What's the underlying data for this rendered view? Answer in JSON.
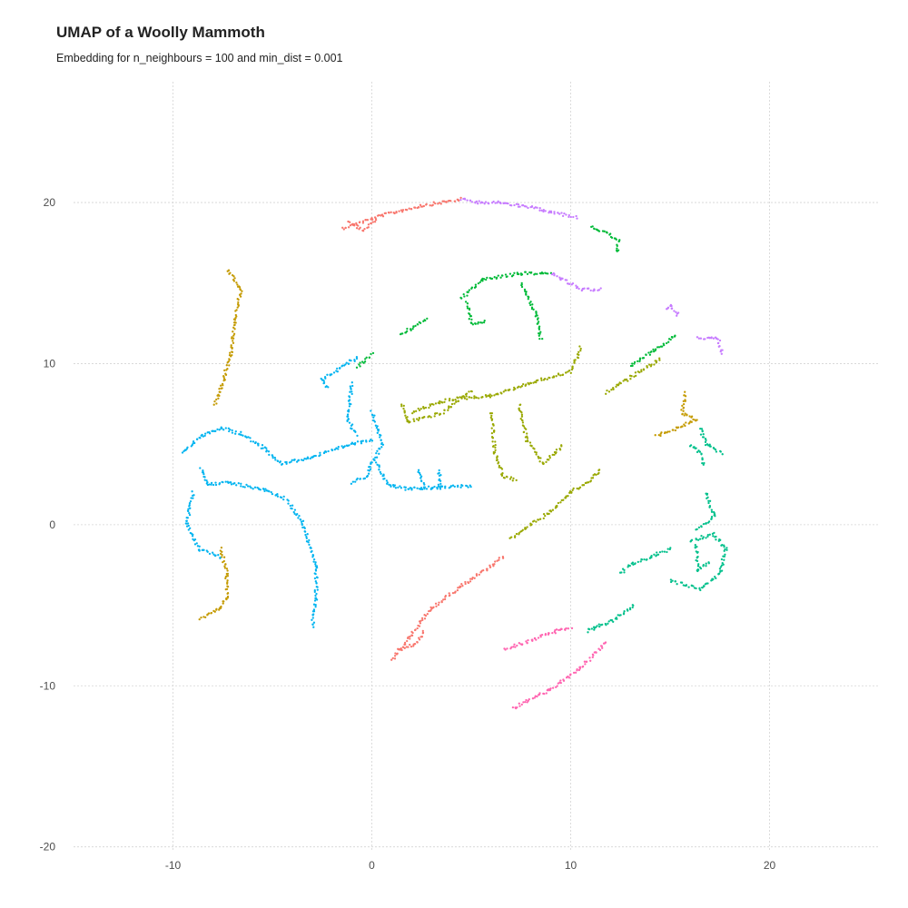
{
  "chart_data": {
    "type": "scatter",
    "title": "UMAP of a Woolly Mammoth",
    "subtitle": "Embedding for n_neighbours = 100 and min_dist = 0.001",
    "xlabel": "",
    "ylabel": "",
    "xlim": [
      -15,
      25.5
    ],
    "ylim": [
      -20.3,
      27.5
    ],
    "x_ticks": [
      -10,
      0,
      10,
      20
    ],
    "y_ticks": [
      -20,
      -10,
      0,
      10,
      20
    ],
    "x_tick_labels": [
      "-10",
      "0",
      "10",
      "20"
    ],
    "y_tick_labels": [
      "-20",
      "-10",
      "0",
      "10",
      "20"
    ],
    "grid": true,
    "legend": "none",
    "series": [
      {
        "color": "#F8766D",
        "curves": [
          [
            [
              -1.5,
              18.4
            ],
            [
              0.5,
              19.2
            ],
            [
              2.5,
              19.8
            ],
            [
              4.5,
              20.2
            ]
          ],
          [
            [
              -1.2,
              18.8
            ],
            [
              -0.4,
              18.3
            ],
            [
              0.2,
              18.9
            ]
          ],
          [
            [
              1.0,
              -8.4
            ],
            [
              2.0,
              -6.8
            ],
            [
              3.0,
              -5.2
            ],
            [
              4.5,
              -3.8
            ],
            [
              6.0,
              -2.6
            ],
            [
              6.6,
              -2.0
            ]
          ],
          [
            [
              1.3,
              -7.8
            ],
            [
              2.2,
              -7.4
            ],
            [
              2.6,
              -6.6
            ]
          ]
        ]
      },
      {
        "color": "#C49A00",
        "curves": [
          [
            [
              -7.2,
              15.8
            ],
            [
              -6.6,
              14.5
            ],
            [
              -6.9,
              12.5
            ],
            [
              -7.1,
              10.5
            ],
            [
              -7.6,
              8.5
            ],
            [
              -7.9,
              7.5
            ]
          ],
          [
            [
              -7.6,
              -1.5
            ],
            [
              -7.3,
              -3.0
            ],
            [
              -7.3,
              -4.5
            ],
            [
              -7.6,
              -5.2
            ],
            [
              -8.6,
              -5.8
            ]
          ],
          [
            [
              15.8,
              8.2
            ],
            [
              15.6,
              6.9
            ],
            [
              16.3,
              6.5
            ],
            [
              15.4,
              6.0
            ],
            [
              14.3,
              5.5
            ]
          ]
        ]
      },
      {
        "color": "#99A800",
        "curves": [
          [
            [
              2.0,
              7.0
            ],
            [
              4.0,
              7.8
            ],
            [
              6.0,
              8.0
            ],
            [
              8.0,
              8.8
            ],
            [
              10.0,
              9.5
            ],
            [
              10.5,
              11.0
            ]
          ],
          [
            [
              1.5,
              7.5
            ],
            [
              1.8,
              6.4
            ],
            [
              3.5,
              6.9
            ],
            [
              5.0,
              8.3
            ]
          ],
          [
            [
              6.0,
              7.0
            ],
            [
              6.2,
              4.5
            ],
            [
              6.6,
              3.0
            ],
            [
              7.2,
              2.8
            ]
          ],
          [
            [
              7.4,
              7.5
            ],
            [
              7.8,
              5.2
            ],
            [
              8.6,
              3.8
            ],
            [
              9.6,
              4.9
            ]
          ],
          [
            [
              11.5,
              3.4
            ],
            [
              10.8,
              2.6
            ],
            [
              10.0,
              2.0
            ],
            [
              9.0,
              0.8
            ],
            [
              8.0,
              0.0
            ],
            [
              7.0,
              -0.9
            ]
          ],
          [
            [
              14.5,
              10.3
            ],
            [
              12.8,
              9.0
            ],
            [
              11.8,
              8.2
            ]
          ]
        ]
      },
      {
        "color": "#00BA38",
        "curves": [
          [
            [
              4.5,
              14.0
            ],
            [
              5.5,
              15.2
            ],
            [
              7.5,
              15.6
            ],
            [
              9.0,
              15.6
            ]
          ],
          [
            [
              4.8,
              13.8
            ],
            [
              5.0,
              12.5
            ],
            [
              5.7,
              12.6
            ]
          ],
          [
            [
              7.5,
              15.0
            ],
            [
              8.3,
              13.0
            ],
            [
              8.5,
              11.5
            ]
          ],
          [
            [
              0.0,
              10.6
            ],
            [
              -0.7,
              9.8
            ]
          ],
          [
            [
              2.8,
              12.8
            ],
            [
              2.0,
              12.2
            ],
            [
              1.4,
              11.8
            ]
          ],
          [
            [
              11.0,
              18.5
            ],
            [
              11.8,
              18.1
            ],
            [
              12.4,
              17.6
            ],
            [
              12.3,
              16.9
            ]
          ],
          [
            [
              15.3,
              11.8
            ],
            [
              14.2,
              10.8
            ],
            [
              13.0,
              9.9
            ]
          ]
        ]
      },
      {
        "color": "#00C08B",
        "curves": [
          [
            [
              16.0,
              -1.0
            ],
            [
              17.2,
              -0.6
            ],
            [
              17.8,
              -1.5
            ],
            [
              17.5,
              -3.0
            ],
            [
              16.5,
              -4.0
            ],
            [
              15.0,
              -3.5
            ]
          ],
          [
            [
              15.0,
              -1.5
            ],
            [
              14.0,
              -2.0
            ],
            [
              13.0,
              -2.5
            ],
            [
              12.5,
              -3.0
            ]
          ],
          [
            [
              16.3,
              -1.2
            ],
            [
              16.4,
              -2.8
            ],
            [
              17.0,
              -2.3
            ]
          ],
          [
            [
              16.8,
              2.0
            ],
            [
              17.2,
              0.5
            ],
            [
              16.3,
              -0.3
            ]
          ],
          [
            [
              16.5,
              6.0
            ],
            [
              16.8,
              5.0
            ],
            [
              17.6,
              4.4
            ]
          ],
          [
            [
              16.0,
              5.0
            ],
            [
              16.5,
              4.5
            ],
            [
              16.7,
              3.7
            ]
          ],
          [
            [
              13.2,
              -5.0
            ],
            [
              12.0,
              -6.0
            ],
            [
              11.2,
              -6.4
            ],
            [
              10.8,
              -6.6
            ]
          ]
        ]
      },
      {
        "color": "#00B4F0",
        "curves": [
          [
            [
              -9.5,
              4.5
            ],
            [
              -8.6,
              5.5
            ],
            [
              -7.5,
              6.0
            ],
            [
              -6.5,
              5.6
            ],
            [
              -5.5,
              4.8
            ],
            [
              -4.5,
              3.8
            ],
            [
              -3.0,
              4.2
            ],
            [
              -1.0,
              5.0
            ],
            [
              0.0,
              5.3
            ]
          ],
          [
            [
              -8.6,
              3.5
            ],
            [
              -8.2,
              2.5
            ],
            [
              -7.2,
              2.6
            ],
            [
              -5.5,
              2.2
            ],
            [
              -4.3,
              1.6
            ]
          ],
          [
            [
              -9.0,
              2.0
            ],
            [
              -9.3,
              0.0
            ],
            [
              -8.7,
              -1.5
            ],
            [
              -7.6,
              -2.0
            ]
          ],
          [
            [
              -4.2,
              1.4
            ],
            [
              -3.5,
              0.2
            ],
            [
              -2.8,
              -2.5
            ],
            [
              -2.8,
              -4.5
            ],
            [
              -3.0,
              -6.3
            ]
          ],
          [
            [
              -2.2,
              8.5
            ],
            [
              -2.5,
              9.0
            ],
            [
              -1.5,
              9.8
            ],
            [
              -0.7,
              10.4
            ]
          ],
          [
            [
              0.0,
              7.0
            ],
            [
              0.5,
              5.0
            ],
            [
              -0.3,
              3.0
            ],
            [
              -1.0,
              2.6
            ]
          ],
          [
            [
              0.2,
              4.0
            ],
            [
              0.8,
              2.5
            ],
            [
              1.8,
              2.2
            ],
            [
              3.0,
              2.3
            ],
            [
              5.0,
              2.4
            ]
          ],
          [
            [
              2.3,
              3.4
            ],
            [
              2.7,
              2.3
            ]
          ],
          [
            [
              3.4,
              3.4
            ],
            [
              3.4,
              2.2
            ]
          ],
          [
            [
              -1.0,
              8.8
            ],
            [
              -1.2,
              6.5
            ],
            [
              -0.8,
              5.6
            ]
          ]
        ]
      },
      {
        "color": "#C77CFF",
        "curves": [
          [
            [
              4.5,
              20.2
            ],
            [
              5.3,
              20.0
            ],
            [
              6.5,
              20.0
            ],
            [
              8.0,
              19.7
            ],
            [
              9.0,
              19.4
            ],
            [
              10.3,
              19.1
            ]
          ],
          [
            [
              9.0,
              15.6
            ],
            [
              9.6,
              15.2
            ],
            [
              10.5,
              14.6
            ],
            [
              11.5,
              14.6
            ]
          ],
          [
            [
              14.8,
              13.4
            ],
            [
              15.0,
              13.6
            ],
            [
              15.4,
              13.0
            ]
          ],
          [
            [
              16.4,
              11.6
            ],
            [
              17.4,
              11.6
            ],
            [
              17.6,
              10.6
            ]
          ]
        ]
      },
      {
        "color": "#FF64B0",
        "curves": [
          [
            [
              6.7,
              -7.7
            ],
            [
              8.0,
              -7.2
            ],
            [
              9.5,
              -6.5
            ],
            [
              10.0,
              -6.5
            ]
          ],
          [
            [
              7.1,
              -11.4
            ],
            [
              9.0,
              -10.2
            ],
            [
              10.4,
              -9.0
            ],
            [
              11.8,
              -7.3
            ]
          ]
        ]
      }
    ]
  }
}
